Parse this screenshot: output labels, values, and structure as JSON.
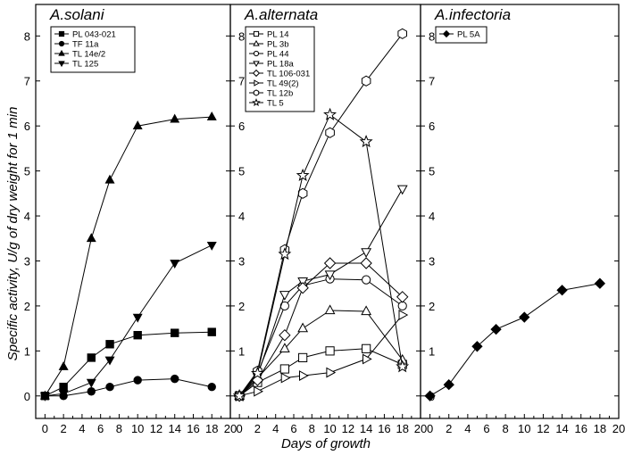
{
  "chart_data": {
    "type": "line",
    "ylabel": "Specific activity, U/g of dry weight for 1 min",
    "xlabel": "Days of growth",
    "xlim": [
      -1,
      20
    ],
    "ylim": [
      -0.5,
      8.7
    ],
    "xticks": [
      0,
      2,
      4,
      6,
      8,
      10,
      12,
      14,
      16,
      18,
      20
    ],
    "yticks": [
      0,
      1,
      2,
      3,
      4,
      5,
      6,
      7,
      8
    ],
    "grid": false,
    "panels": [
      {
        "title": "A.solani",
        "legend_position": "top-left",
        "series": [
          {
            "name": "PL 043-021",
            "marker": "square",
            "filled": true,
            "x": [
              0,
              2,
              5,
              7,
              10,
              14,
              18
            ],
            "y": [
              0,
              0.2,
              0.85,
              1.15,
              1.35,
              1.4,
              1.42
            ]
          },
          {
            "name": "TF 11a",
            "marker": "circle",
            "filled": true,
            "x": [
              0,
              2,
              5,
              7,
              10,
              14,
              18
            ],
            "y": [
              0,
              0.0,
              0.1,
              0.2,
              0.35,
              0.38,
              0.2
            ]
          },
          {
            "name": "TL 14e/2",
            "marker": "triangle-up",
            "filled": true,
            "x": [
              0,
              2,
              5,
              7,
              10,
              14,
              18
            ],
            "y": [
              0,
              0.65,
              3.5,
              4.8,
              6.0,
              6.15,
              6.2
            ]
          },
          {
            "name": "TL 125",
            "marker": "triangle-down",
            "filled": true,
            "x": [
              0,
              2,
              5,
              7,
              10,
              14,
              18
            ],
            "y": [
              0,
              0.05,
              0.3,
              0.8,
              1.75,
              2.95,
              3.35
            ]
          }
        ]
      },
      {
        "title": "A.alternata",
        "legend_position": "top-left",
        "series": [
          {
            "name": "PL 14",
            "marker": "square",
            "filled": false,
            "x": [
              0,
              2,
              5,
              7,
              10,
              14,
              18
            ],
            "y": [
              0,
              0.3,
              0.6,
              0.85,
              1.0,
              1.05,
              0.7
            ]
          },
          {
            "name": "PL 3b",
            "marker": "triangle-up",
            "filled": false,
            "x": [
              0,
              2,
              5,
              7,
              10,
              14,
              18
            ],
            "y": [
              0,
              0.4,
              1.05,
              1.5,
              1.9,
              1.88,
              0.8
            ]
          },
          {
            "name": "PL 44",
            "marker": "circle",
            "filled": false,
            "x": [
              0,
              2,
              5,
              7,
              10,
              14,
              18
            ],
            "y": [
              0,
              0.5,
              2.0,
              2.45,
              2.6,
              2.58,
              2.0
            ]
          },
          {
            "name": "PL 18a",
            "marker": "triangle-down",
            "filled": false,
            "x": [
              0,
              2,
              5,
              7,
              10,
              14,
              18
            ],
            "y": [
              0,
              0.45,
              2.25,
              2.55,
              2.7,
              3.2,
              4.6
            ]
          },
          {
            "name": "TL 106-031",
            "marker": "diamond",
            "filled": false,
            "x": [
              0,
              2,
              5,
              7,
              10,
              14,
              18
            ],
            "y": [
              0,
              0.35,
              1.35,
              2.4,
              2.95,
              2.95,
              2.2
            ]
          },
          {
            "name": "TL 49(2)",
            "marker": "triangle-right",
            "filled": false,
            "x": [
              0,
              2,
              5,
              7,
              10,
              14,
              18
            ],
            "y": [
              0,
              0.1,
              0.4,
              0.45,
              0.52,
              0.82,
              1.8
            ]
          },
          {
            "name": "TL 12b",
            "marker": "hexagon",
            "filled": false,
            "x": [
              0,
              2,
              5,
              7,
              10,
              14,
              18
            ],
            "y": [
              0,
              0.55,
              3.25,
              4.5,
              5.85,
              7.0,
              8.05
            ]
          },
          {
            "name": "TL 5",
            "marker": "star",
            "filled": false,
            "x": [
              0,
              2,
              5,
              7,
              10,
              14,
              18
            ],
            "y": [
              0,
              0.5,
              3.15,
              4.9,
              6.25,
              5.65,
              0.65
            ]
          }
        ]
      },
      {
        "title": "A.infectoria",
        "legend_position": "top-left",
        "series": [
          {
            "name": "PL 5A",
            "marker": "diamond",
            "filled": true,
            "x": [
              0,
              2,
              5,
              7,
              10,
              14,
              18
            ],
            "y": [
              0,
              0.25,
              1.1,
              1.48,
              1.75,
              2.35,
              2.5
            ]
          }
        ]
      }
    ]
  }
}
